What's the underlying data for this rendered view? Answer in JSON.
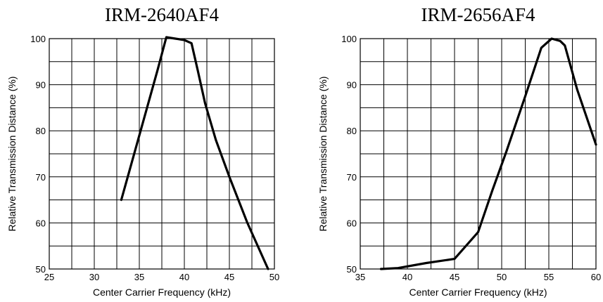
{
  "chart_data": [
    {
      "type": "line",
      "title": "IRM-2640AF4",
      "xlabel": "Center Carrier Frequency  (kHz)",
      "ylabel": "Relative Transmission Distance (%)",
      "xlim": [
        25,
        50
      ],
      "ylim": [
        50,
        100
      ],
      "x_ticks": [
        25,
        30,
        35,
        40,
        45,
        50
      ],
      "y_ticks": [
        50,
        60,
        70,
        80,
        90,
        100
      ],
      "x_grid_step": 2.5,
      "y_grid_step": 5,
      "grid": true,
      "series": [
        {
          "x": [
            33,
            35,
            37,
            38,
            39,
            40,
            40.8,
            41.5,
            42.3,
            43.5,
            45,
            47,
            49.3
          ],
          "y": [
            65,
            79,
            93,
            100.3,
            100,
            99.7,
            99,
            93,
            86,
            78,
            70,
            60,
            50
          ]
        }
      ]
    },
    {
      "type": "line",
      "title": "IRM-2656AF4",
      "xlabel": "Center Carrier Frequency  (kHz)",
      "ylabel": "Relative Transmission Distance (%)",
      "xlim": [
        35,
        60
      ],
      "ylim": [
        50,
        100
      ],
      "x_ticks": [
        35,
        40,
        45,
        50,
        55,
        60
      ],
      "y_ticks": [
        50,
        60,
        70,
        80,
        90,
        100
      ],
      "x_grid_step": 2.5,
      "y_grid_step": 5,
      "grid": true,
      "series": [
        {
          "x": [
            37.2,
            39,
            42,
            45,
            47.5,
            49,
            50.5,
            52.5,
            54.2,
            55.3,
            56.2,
            56.7,
            58,
            60
          ],
          "y": [
            50,
            50.2,
            51.3,
            52.2,
            58,
            67,
            75.5,
            87.5,
            98,
            100,
            99.5,
            98.5,
            89,
            77
          ]
        }
      ]
    }
  ]
}
